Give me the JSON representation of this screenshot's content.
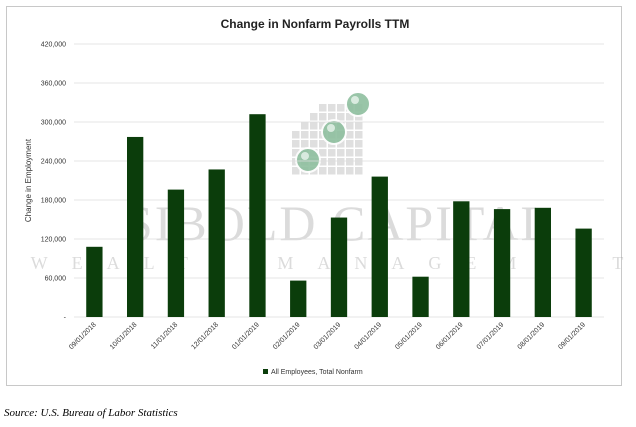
{
  "chart_data": {
    "type": "bar",
    "title": "Change in Nonfarm Payrolls TTM",
    "ylabel": "Change in Employment",
    "ylim": [
      0,
      420000
    ],
    "yticks": [
      "-",
      "60,000",
      "120,000",
      "180,000",
      "240,000",
      "300,000",
      "360,000",
      "420,000"
    ],
    "yticks_values": [
      0,
      60000,
      120000,
      180000,
      240000,
      300000,
      360000,
      420000
    ],
    "categories": [
      "09/01/2018",
      "10/01/2018",
      "11/01/2018",
      "12/01/2018",
      "01/01/2019",
      "02/01/2019",
      "03/01/2019",
      "04/01/2019",
      "05/01/2019",
      "06/01/2019",
      "07/01/2019",
      "08/01/2019",
      "09/01/2019"
    ],
    "series": [
      {
        "name": "All Employees, Total Nonfarm",
        "color": "#0b3d0b",
        "values": [
          108000,
          277000,
          196000,
          227000,
          312000,
          56000,
          153000,
          216000,
          62000,
          178000,
          166000,
          168000,
          136000
        ]
      }
    ],
    "legend_position": "bottom",
    "grid": true
  },
  "watermark": {
    "line1": "SIBOLD CAPITAL",
    "line2": "WEALTH MANAGEMENT"
  },
  "source_note": "Source: U.S. Bureau of Labor Statistics"
}
